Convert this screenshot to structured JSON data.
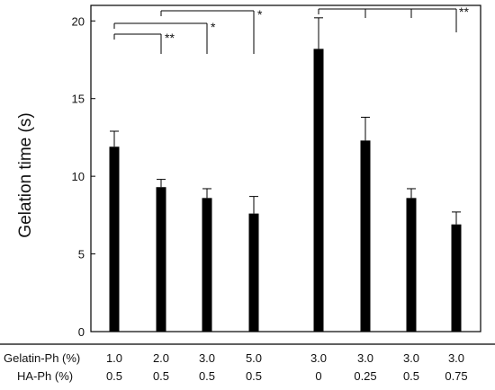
{
  "chart_data": {
    "type": "bar",
    "ylabel": "Gelation time (s)",
    "ylim": [
      0,
      21
    ],
    "yticks": [
      0,
      5,
      10,
      15,
      20
    ],
    "bar_color": "#000000",
    "categories": [
      {
        "gelatin": "1.0",
        "ha": "0.5"
      },
      {
        "gelatin": "2.0",
        "ha": "0.5"
      },
      {
        "gelatin": "3.0",
        "ha": "0.5"
      },
      {
        "gelatin": "5.0",
        "ha": "0.5"
      },
      {
        "gelatin": "3.0",
        "ha": "0"
      },
      {
        "gelatin": "3.0",
        "ha": "0.25"
      },
      {
        "gelatin": "3.0",
        "ha": "0.5"
      },
      {
        "gelatin": "3.0",
        "ha": "0.75"
      }
    ],
    "values": [
      11.9,
      9.3,
      8.6,
      7.6,
      18.2,
      12.3,
      8.6,
      6.9
    ],
    "errors": [
      1.0,
      0.5,
      0.6,
      1.1,
      2.0,
      1.5,
      0.6,
      0.8
    ],
    "row_labels": [
      "Gelatin-Ph (%)",
      "HA-Ph (%)"
    ],
    "significance": [
      {
        "group": "first",
        "from": 0,
        "to": 1,
        "label": "**"
      },
      {
        "group": "first",
        "from": 0,
        "to": 2,
        "label": "*"
      },
      {
        "group": "first",
        "from": 1,
        "to": 3,
        "label": "*"
      },
      {
        "group": "second",
        "from": 4,
        "to": 7,
        "label": "**"
      }
    ]
  }
}
